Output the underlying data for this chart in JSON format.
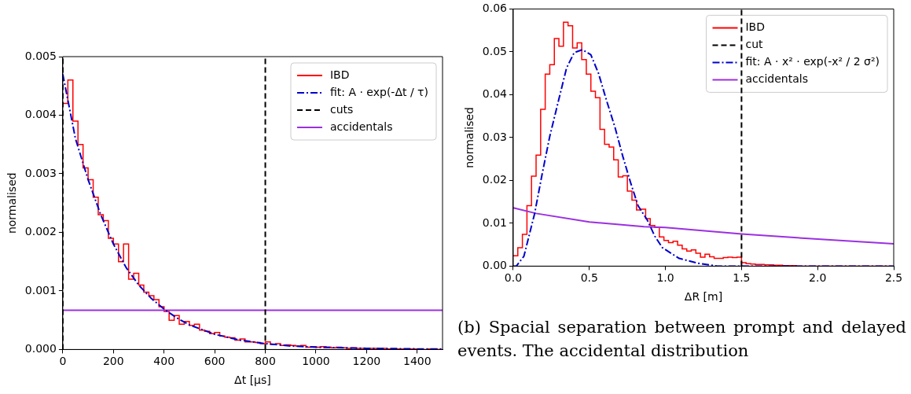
{
  "chart_data": [
    {
      "type": "histogram",
      "xlabel": "Δt [μs]",
      "ylabel": "normalised",
      "xlim": [
        0,
        1500
      ],
      "xticks": [
        0,
        200,
        400,
        600,
        800,
        1000,
        1200,
        1400
      ],
      "ylim": [
        0,
        0.005
      ],
      "yticks": [
        {
          "value": 0,
          "label": "0.000"
        },
        {
          "value": 0.001,
          "label": "0.001"
        },
        {
          "value": 0.002,
          "label": "0.002"
        },
        {
          "value": 0.003,
          "label": "0.003"
        },
        {
          "value": 0.004,
          "label": "0.004"
        },
        {
          "value": 0.005,
          "label": "0.005"
        }
      ],
      "grid": false,
      "legend": "top right",
      "series": [
        {
          "name": "IBD",
          "color": "#ff0000",
          "bins": [
            0,
            20,
            40,
            60,
            80,
            100,
            120,
            140,
            160,
            180,
            200,
            220,
            240,
            260,
            280,
            300,
            320,
            340,
            360,
            380,
            400,
            420,
            440,
            460,
            480,
            500,
            520,
            540,
            560,
            580,
            600,
            620,
            640,
            660,
            680,
            700,
            720,
            740,
            760,
            780,
            800,
            820,
            840,
            860,
            880,
            900,
            920,
            940,
            960,
            980,
            1000,
            1020,
            1040,
            1060,
            1080,
            1100,
            1120,
            1140,
            1160,
            1180,
            1200,
            1220,
            1240,
            1260,
            1280,
            1300,
            1320,
            1340,
            1360,
            1380,
            1400,
            1420,
            1440,
            1460,
            1480,
            1500
          ],
          "values": [
            0.0042,
            0.0046,
            0.0039,
            0.0035,
            0.0031,
            0.0029,
            0.0026,
            0.0023,
            0.0022,
            0.0019,
            0.0018,
            0.0015,
            0.0018,
            0.0012,
            0.0013,
            0.0011,
            0.00098,
            0.00092,
            0.00085,
            0.00073,
            0.00065,
            0.0005,
            0.00058,
            0.00043,
            0.00048,
            0.00041,
            0.00043,
            0.00033,
            0.00031,
            0.00027,
            0.00029,
            0.00023,
            0.00021,
            0.0002,
            0.00016,
            0.00018,
            0.00013,
            0.00013,
            0.00012,
            0.0001,
            0.00013,
            9e-05,
            0.0001,
            7e-05,
            8e-05,
            7e-05,
            6e-05,
            7e-05,
            4e-05,
            5e-05,
            4e-05,
            5e-05,
            4e-05,
            3e-05,
            4e-05,
            3e-05,
            2e-05,
            3e-05,
            2e-05,
            2e-05,
            2e-05,
            2e-05,
            1e-05,
            2e-05,
            1e-05,
            1e-05,
            1e-05,
            1e-05,
            1e-05,
            1e-05,
            1e-05,
            0,
            1e-05,
            1e-05,
            0
          ]
        },
        {
          "name": "fit: A · exp(-Δt / τ)",
          "type": "line",
          "line_style": "dashdot",
          "color": "#0000cc",
          "x": [
            0,
            50,
            100,
            150,
            200,
            250,
            300,
            350,
            400,
            450,
            500,
            600,
            700,
            800,
            900,
            1000,
            1200,
            1400,
            1500
          ],
          "values": [
            0.0047,
            0.0036,
            0.0029,
            0.0023,
            0.0018,
            0.0014,
            0.0011,
            0.00087,
            0.00069,
            0.00054,
            0.00042,
            0.00026,
            0.00016,
            0.0001,
            6e-05,
            4e-05,
            2e-05,
            1e-05,
            1e-05
          ]
        },
        {
          "name": "cuts",
          "type": "line",
          "line_style": "dashed",
          "color": "#000000",
          "x": [
            0,
            0
          ],
          "values": [
            0,
            0.005
          ]
        },
        {
          "type": "line",
          "line_style": "dashed",
          "color": "#000000",
          "x": [
            800,
            800
          ],
          "values": [
            0,
            0.005
          ]
        },
        {
          "name": "accidentals",
          "type": "line",
          "line_style": "solid",
          "color": "#9b30e0",
          "x": [
            0,
            1500
          ],
          "values": [
            0.00067,
            0.00067
          ]
        }
      ]
    },
    {
      "type": "histogram",
      "xlabel": "ΔR [m]",
      "ylabel": "normalised",
      "xlim": [
        0,
        2.5
      ],
      "xticks": [
        {
          "value": 0,
          "label": "0.0"
        },
        {
          "value": 0.5,
          "label": "0.5"
        },
        {
          "value": 1,
          "label": "1.0"
        },
        {
          "value": 1.5,
          "label": "1.5"
        },
        {
          "value": 2,
          "label": "2.0"
        },
        {
          "value": 2.5,
          "label": "2.5"
        }
      ],
      "ylim": [
        0,
        0.06
      ],
      "yticks": [
        {
          "value": 0,
          "label": "0.00"
        },
        {
          "value": 0.01,
          "label": "0.01"
        },
        {
          "value": 0.02,
          "label": "0.02"
        },
        {
          "value": 0.03,
          "label": "0.03"
        },
        {
          "value": 0.04,
          "label": "0.04"
        },
        {
          "value": 0.05,
          "label": "0.05"
        },
        {
          "value": 0.06,
          "label": "0.06"
        }
      ],
      "grid": false,
      "legend": "top right",
      "ref_lines": [
        {
          "axis": "x",
          "value": 1.5,
          "label": "cut",
          "color": "#000000",
          "line_style": "dashed"
        }
      ],
      "annotations": [
        "(b) Spacial separation between prompt and delayed events. The accidental distribution"
      ],
      "series": [
        {
          "name": "IBD",
          "color": "#ff0000",
          "bins": [
            0,
            0.03,
            0.06,
            0.09,
            0.12,
            0.15,
            0.18,
            0.21,
            0.24,
            0.27,
            0.3,
            0.33,
            0.36,
            0.39,
            0.42,
            0.45,
            0.48,
            0.51,
            0.54,
            0.57,
            0.6,
            0.63,
            0.66,
            0.69,
            0.72,
            0.75,
            0.78,
            0.81,
            0.84,
            0.87,
            0.9,
            0.93,
            0.96,
            0.99,
            1.02,
            1.05,
            1.08,
            1.11,
            1.14,
            1.17,
            1.2,
            1.23,
            1.26,
            1.29,
            1.32,
            1.35,
            1.38,
            1.41,
            1.44,
            1.47,
            1.5,
            1.53,
            1.56,
            1.59,
            1.62,
            1.65,
            1.68,
            1.71,
            1.74,
            1.77,
            1.8,
            1.83,
            1.86,
            1.89,
            1.92,
            1.95,
            1.98,
            2.01,
            2.04,
            2.07,
            2.1,
            2.13,
            2.16,
            2.19,
            2.22,
            2.25,
            2.28,
            2.31,
            2.34,
            2.37,
            2.4,
            2.43,
            2.46,
            2.49
          ],
          "values": [
            0.0024,
            0.0043,
            0.0074,
            0.0141,
            0.021,
            0.0259,
            0.0366,
            0.0448,
            0.047,
            0.0531,
            0.0513,
            0.0569,
            0.0561,
            0.0509,
            0.0521,
            0.0482,
            0.0448,
            0.0408,
            0.0393,
            0.0319,
            0.0284,
            0.0278,
            0.0248,
            0.0208,
            0.0211,
            0.0175,
            0.0154,
            0.0131,
            0.0133,
            0.0111,
            0.0095,
            0.009,
            0.0068,
            0.006,
            0.0055,
            0.0058,
            0.0049,
            0.004,
            0.0035,
            0.0038,
            0.003,
            0.0021,
            0.0028,
            0.0022,
            0.0018,
            0.0018,
            0.002,
            0.0021,
            0.002,
            0.0021,
            0.0008,
            0.0006,
            0.0005,
            0.0004,
            0.0004,
            0.0003,
            0.0003,
            0.0002,
            0.0002,
            0.0001,
            0.0001,
            0.0001,
            0,
            0,
            0,
            0,
            0,
            0,
            0,
            0,
            0,
            0,
            0,
            0,
            0,
            0,
            0,
            0,
            0,
            0,
            0,
            0,
            0
          ]
        },
        {
          "name": "fit: A · x² · exp(-x² / 2 σ²)",
          "type": "line",
          "line_style": "dashdot",
          "color": "#0000cc",
          "x": [
            0,
            0.02,
            0.07,
            0.14,
            0.19,
            0.24,
            0.3,
            0.35,
            0.4,
            0.455,
            0.51,
            0.56,
            0.61,
            0.67,
            0.72,
            0.77,
            0.82,
            0.88,
            0.93,
            0.98,
            1.09,
            1.21,
            1.34,
            2.5
          ],
          "values": [
            0,
            0,
            0.0023,
            0.0122,
            0.0215,
            0.0303,
            0.039,
            0.0462,
            0.0498,
            0.0505,
            0.0493,
            0.045,
            0.039,
            0.0322,
            0.0256,
            0.0196,
            0.0141,
            0.0108,
            0.007,
            0.0043,
            0.0018,
            0.0007,
            0,
            0
          ]
        },
        {
          "name": "accidentals",
          "type": "line",
          "line_style": "solid",
          "color": "#9b30e0",
          "x": [
            0,
            0.15,
            0.5,
            0.86,
            1,
            1.5,
            2,
            2.5
          ],
          "values": [
            0.0136,
            0.0123,
            0.0103,
            0.0092,
            0.009,
            0.0075,
            0.0063,
            0.0052
          ]
        }
      ]
    }
  ]
}
